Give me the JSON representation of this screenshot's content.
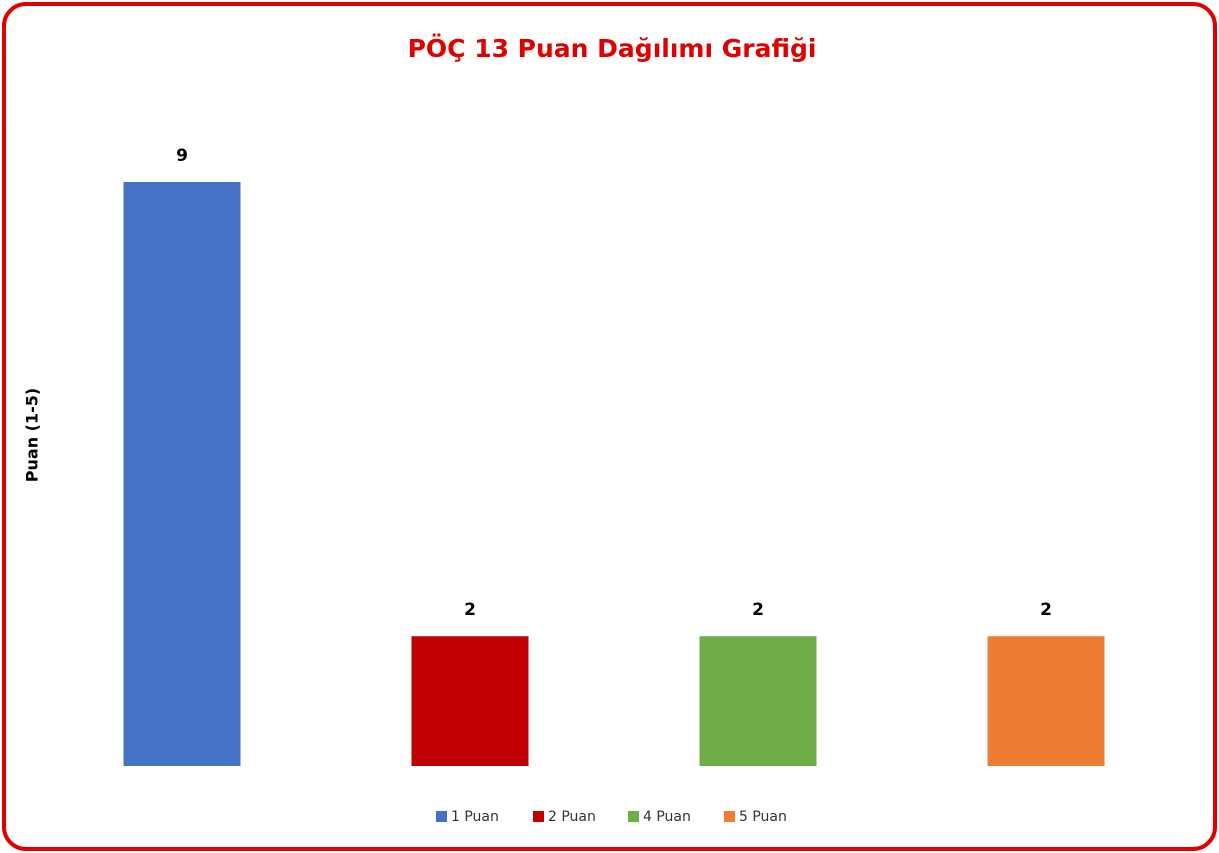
{
  "chart_data": {
    "type": "bar",
    "title": "PÖÇ 13 Puan Dağılımı Grafiği",
    "y_label": "Puan (1-5)",
    "categories": [
      "1 Puan",
      "2 Puan",
      "4 Puan",
      "5 Puan"
    ],
    "values": [
      9,
      2,
      2,
      2
    ],
    "colors": [
      "#4472c4",
      "#c00000",
      "#70ad47",
      "#ed7d31"
    ],
    "legend": "bottom"
  }
}
